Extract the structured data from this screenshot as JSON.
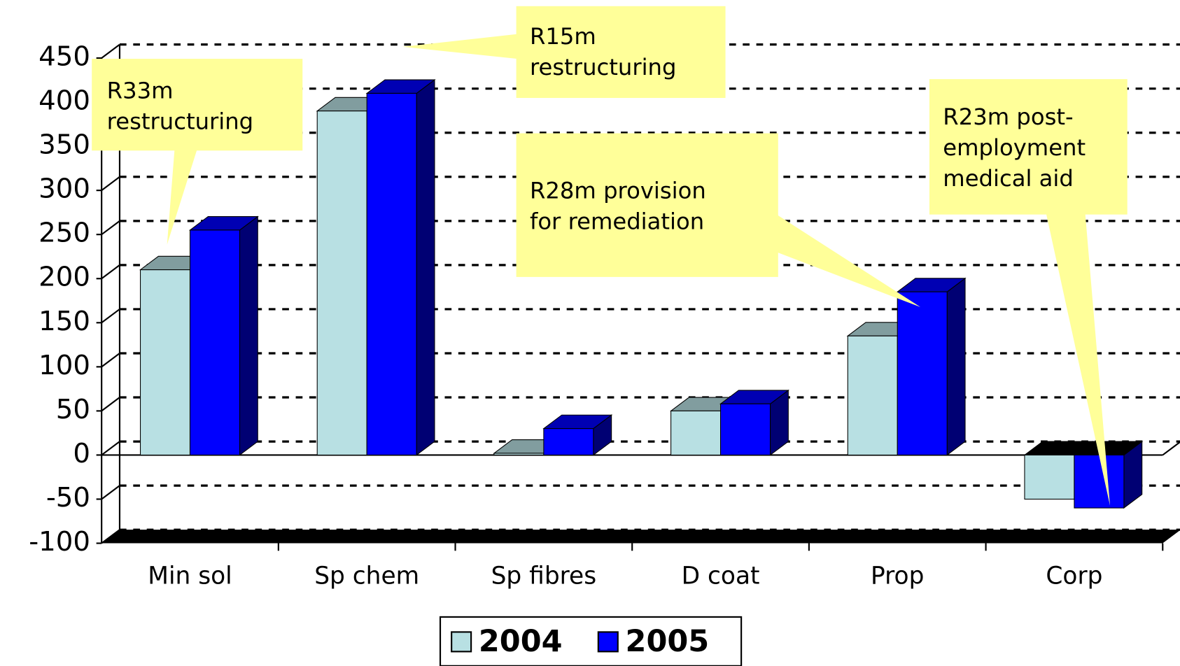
{
  "chart_data": {
    "type": "bar3d",
    "categories": [
      "Min sol",
      "Sp chem",
      "Sp fibres",
      "D coat",
      "Prop",
      "Corp"
    ],
    "series": [
      {
        "name": "2004",
        "color": "#b8e0e3",
        "values": [
          210,
          390,
          2,
          50,
          135,
          -50
        ]
      },
      {
        "name": "2005",
        "color": "#0000ff",
        "values": [
          255,
          410,
          30,
          58,
          185,
          -60
        ]
      }
    ],
    "ylim": [
      -100,
      450
    ],
    "yticks": [
      -100,
      -50,
      0,
      50,
      100,
      150,
      200,
      250,
      300,
      350,
      400,
      450
    ],
    "grid": true,
    "legend": "bottom",
    "annotations": [
      {
        "lines": [
          "R33m",
          "restructuring"
        ]
      },
      {
        "lines": [
          "R15m",
          "restructuring"
        ]
      },
      {
        "lines": [
          "R28m provision",
          "for remediation"
        ]
      },
      {
        "lines": [
          "R23m post-",
          "employment",
          "medical aid"
        ]
      }
    ]
  }
}
